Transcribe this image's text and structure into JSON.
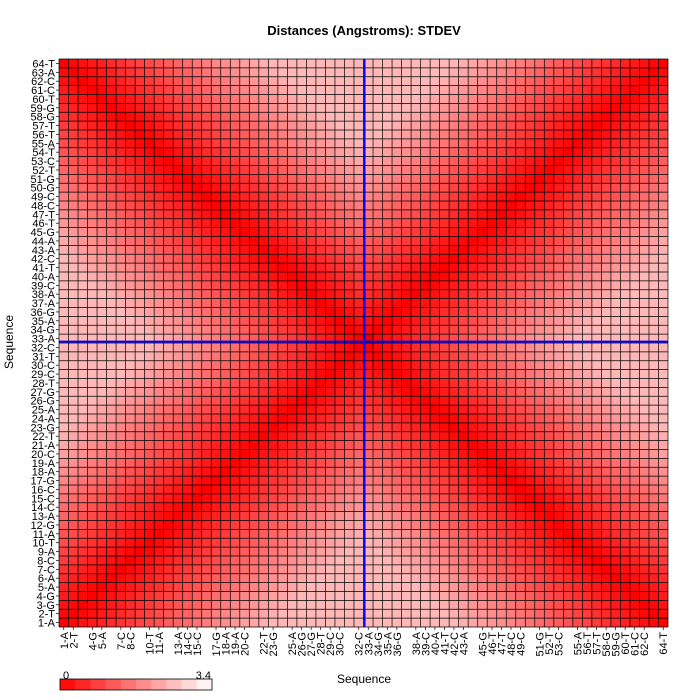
{
  "chart_data": {
    "type": "heatmap",
    "title": "Distances (Angstroms):  STDEV",
    "xlabel": "Sequence",
    "ylabel": "Sequence",
    "sequence_labels": [
      "1-A",
      "2-T",
      "3-G",
      "4-G",
      "5-A",
      "6-A",
      "7-C",
      "8-C",
      "9-A",
      "10-T",
      "11-A",
      "12-G",
      "13-A",
      "14-C",
      "15-C",
      "16-C",
      "17-G",
      "18-A",
      "19-A",
      "20-C",
      "21-A",
      "22-T",
      "23-G",
      "24-A",
      "25-A",
      "26-G",
      "27-G",
      "28-T",
      "29-C",
      "30-C",
      "31-T",
      "32-C",
      "33-A",
      "34-G",
      "35-A",
      "36-G",
      "37-A",
      "38-A",
      "39-C",
      "40-A",
      "41-T",
      "42-C",
      "43-A",
      "44-A",
      "45-G",
      "46-T",
      "47-T",
      "48-C",
      "49-C",
      "50-G",
      "51-G",
      "52-T",
      "53-C",
      "54-T",
      "55-A",
      "56-T",
      "57-T",
      "58-G",
      "59-G",
      "60-T",
      "61-C",
      "62-C",
      "63-A",
      "64-T"
    ],
    "x_tick_labels": [
      "1-A",
      "2-T",
      "4-G",
      "5-A",
      "7-C",
      "8-C",
      "10-T",
      "11-A",
      "13-A",
      "14-C",
      "15-C",
      "17-G",
      "18-A",
      "19-A",
      "20-C",
      "22-T",
      "23-G",
      "25-A",
      "26-G",
      "27-G",
      "28-T",
      "29-C",
      "30-C",
      "32-C",
      "33-A",
      "34-G",
      "35-A",
      "36-G",
      "38-A",
      "39-C",
      "40-A",
      "41-T",
      "42-C",
      "43-A",
      "45-G",
      "46-T",
      "47-T",
      "48-C",
      "49-C",
      "51-G",
      "52-T",
      "53-C",
      "55-A",
      "56-T",
      "57-T",
      "58-G",
      "59-G",
      "60-T",
      "61-C",
      "62-C",
      "64-T"
    ],
    "y_tick_labels": [
      "1-A",
      "2-T",
      "3-G",
      "4-G",
      "5-A",
      "6-A",
      "7-C",
      "8-C",
      "9-A",
      "10-T",
      "11-A",
      "12-G",
      "13-A",
      "14-C",
      "15-C",
      "16-C",
      "17-G",
      "18-A",
      "19-A",
      "20-C",
      "21-A",
      "22-T",
      "23-G",
      "24-A",
      "25-A",
      "26-G",
      "27-G",
      "28-T",
      "29-C",
      "30-C",
      "31-T",
      "32-C",
      "33-A",
      "34-G",
      "35-A",
      "36-G",
      "37-A",
      "38-A",
      "39-C",
      "40-A",
      "41-T",
      "42-C",
      "43-A",
      "44-A",
      "45-G",
      "46-T",
      "47-T",
      "48-C",
      "49-C",
      "50-G",
      "51-G",
      "52-T",
      "53-C",
      "54-T",
      "55-A",
      "56-T",
      "57-T",
      "58-G",
      "59-G",
      "60-T",
      "61-C",
      "62-C",
      "63-A",
      "64-T"
    ],
    "value_range": [
      0,
      3.4
    ],
    "selected_cell": {
      "x": "33-A",
      "y": "33-A"
    },
    "colors": {
      "low": "#ff0000",
      "high": "#ffffff",
      "grid": "#000000",
      "crosshair": "#0000ff",
      "selected": "#e60000"
    },
    "legend": {
      "min_label": "0",
      "max_label": "3.4",
      "placement": "bottom-left"
    },
    "values_note_unused": null
  }
}
